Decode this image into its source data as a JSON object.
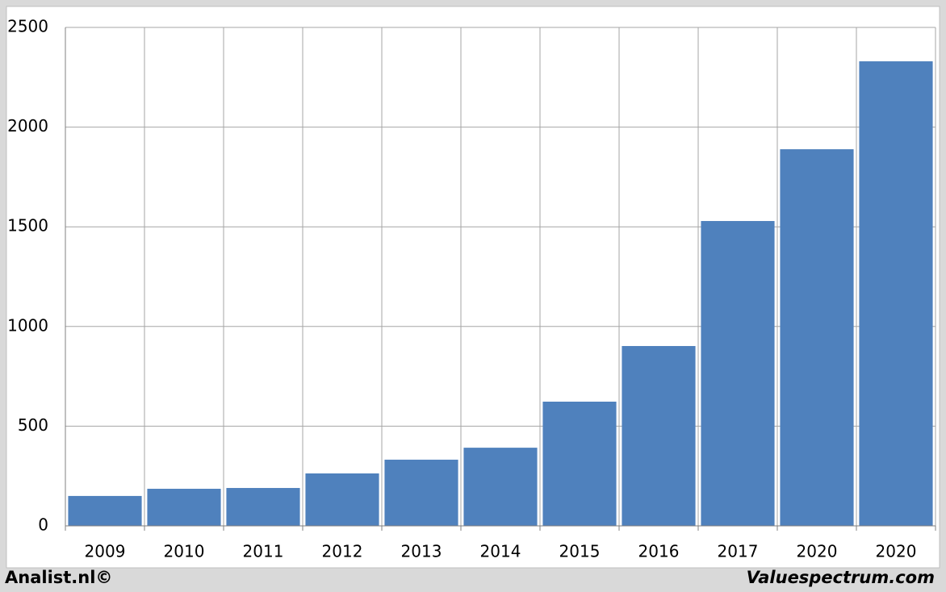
{
  "chart_data": {
    "type": "bar",
    "categories": [
      "2009",
      "2010",
      "2011",
      "2012",
      "2013",
      "2014",
      "2015",
      "2016",
      "2017",
      "2020",
      "2020"
    ],
    "values": [
      150,
      186,
      190,
      263,
      332,
      392,
      623,
      902,
      1529,
      1889,
      2330
    ],
    "color": "#4f81bd",
    "ylim": [
      0,
      2500
    ],
    "yticks": [
      0,
      500,
      1000,
      1500,
      2000,
      2500
    ],
    "grid": true
  },
  "footer": {
    "left": "Analist.nl©",
    "right": "Valuespectrum.com"
  }
}
